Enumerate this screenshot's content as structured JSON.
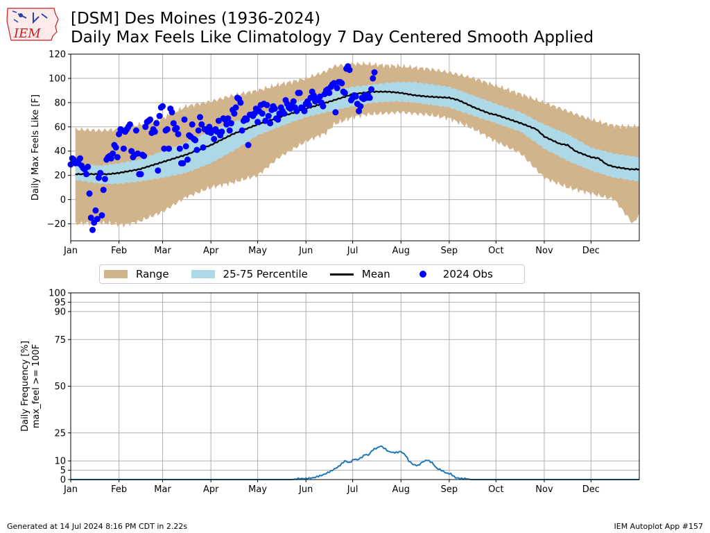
{
  "header": {
    "logo_text": "IEM",
    "title_line1": "[DSM] Des Moines (1936-2024)",
    "title_line2": "Daily Max Feels Like Climatology  7 Day Centered Smooth Applied"
  },
  "legend": {
    "range_label": "Range",
    "percentile_label": "25-75 Percentile",
    "mean_label": "Mean",
    "obs_label": "2024 Obs"
  },
  "footer": {
    "generated": "Generated at 14 Jul 2024 8:16 PM CDT in 2.22s",
    "app": "IEM Autoplot App #157"
  },
  "colors": {
    "range": "#d2b48c",
    "percentile": "#add8e6",
    "mean": "#000000",
    "obs": "#0000ff",
    "frequency": "#1f77b4",
    "grid": "#b0b0b0"
  },
  "chart_data": [
    {
      "type": "area",
      "ylabel": "Daily Max Feels Like [F]",
      "ylim": [
        -34,
        120
      ],
      "yticks": [
        -20,
        0,
        20,
        40,
        60,
        80,
        100,
        120
      ],
      "ytick_labels": [
        "−20",
        "0",
        "20",
        "40",
        "60",
        "80",
        "100",
        "120"
      ],
      "xlim": [
        1,
        366
      ],
      "xticks": [
        1,
        32,
        60,
        91,
        121,
        152,
        182,
        213,
        244,
        274,
        305,
        335
      ],
      "xtick_labels": [
        "Jan",
        "Feb",
        "Mar",
        "Apr",
        "May",
        "Jun",
        "Jul",
        "Aug",
        "Sep",
        "Oct",
        "Nov",
        "Dec"
      ],
      "grid": true,
      "legend_position": "below",
      "series": [
        {
          "name": "Range",
          "x": [
            4,
            20,
            35,
            45,
            60,
            75,
            91,
            105,
            121,
            135,
            152,
            165,
            170,
            182,
            190,
            200,
            213,
            230,
            244,
            260,
            274,
            290,
            305,
            320,
            335,
            350,
            362,
            366
          ],
          "low": [
            -20,
            -19,
            -21,
            -18,
            -10,
            2,
            10,
            14,
            20,
            35,
            48,
            55,
            62,
            68,
            70,
            71,
            72,
            70,
            67,
            58,
            48,
            38,
            18,
            10,
            5,
            0,
            -20,
            -12
          ],
          "high": [
            58,
            57,
            58,
            62,
            67,
            77,
            81,
            86,
            90,
            95,
            100,
            106,
            110,
            112,
            112,
            111,
            110,
            108,
            105,
            100,
            94,
            87,
            80,
            73,
            66,
            61,
            60,
            61
          ]
        },
        {
          "name": "25-75 Percentile",
          "x": [
            4,
            10,
            20,
            32,
            45,
            60,
            75,
            91,
            105,
            121,
            135,
            152,
            165,
            182,
            195,
            210,
            222,
            244,
            255,
            274,
            290,
            305,
            320,
            335,
            350,
            366
          ],
          "low": [
            16,
            15,
            13,
            13,
            15,
            18,
            22,
            30,
            40,
            53,
            60,
            68,
            72,
            77,
            80,
            81,
            80,
            76,
            71,
            63,
            56,
            42,
            32,
            24,
            18,
            15
          ],
          "high": [
            30,
            29,
            28,
            30,
            33,
            40,
            47,
            57,
            64,
            70,
            76,
            83,
            89,
            93,
            95,
            97,
            97,
            93,
            88,
            79,
            72,
            62,
            54,
            43,
            38,
            35
          ]
        },
        {
          "name": "Mean",
          "x": [
            4,
            15,
            25,
            32,
            45,
            60,
            75,
            91,
            105,
            121,
            135,
            152,
            165,
            175,
            182,
            195,
            205,
            213,
            222,
            230,
            244,
            250,
            260,
            270,
            274,
            290,
            300,
            305,
            315,
            320,
            325,
            335,
            340,
            345,
            350,
            360,
            366
          ],
          "values": [
            21,
            21,
            21,
            22,
            25,
            31,
            37,
            45,
            54,
            62,
            68,
            75,
            80,
            84,
            87,
            89,
            89,
            88,
            86,
            85,
            84,
            82,
            76,
            71,
            70,
            63,
            58,
            52,
            46,
            45,
            40,
            35,
            34,
            29,
            27,
            25,
            25
          ]
        },
        {
          "name": "2024 Obs",
          "x": [
            1,
            2,
            3,
            4,
            5,
            6,
            7,
            8,
            9,
            10,
            11,
            12,
            13,
            14,
            15,
            16,
            17,
            18,
            19,
            20,
            21,
            22,
            23,
            24,
            25,
            26,
            27,
            28,
            29,
            30,
            31,
            32,
            33,
            34,
            35,
            36,
            37,
            38,
            39,
            40,
            41,
            42,
            43,
            44,
            45,
            46,
            47,
            48,
            49,
            50,
            51,
            52,
            53,
            54,
            55,
            56,
            57,
            58,
            59,
            60,
            61,
            62,
            63,
            64,
            65,
            66,
            67,
            68,
            69,
            70,
            71,
            72,
            73,
            74,
            75,
            76,
            77,
            78,
            79,
            80,
            81,
            82,
            83,
            84,
            85,
            86,
            87,
            88,
            89,
            90,
            91,
            92,
            93,
            94,
            95,
            96,
            97,
            98,
            99,
            100,
            101,
            102,
            103,
            104,
            105,
            106,
            107,
            108,
            109,
            110,
            111,
            112,
            113,
            114,
            115,
            116,
            117,
            118,
            119,
            120,
            121,
            122,
            123,
            124,
            125,
            126,
            127,
            128,
            129,
            130,
            131,
            132,
            133,
            134,
            135,
            136,
            137,
            138,
            139,
            140,
            141,
            142,
            143,
            144,
            145,
            146,
            147,
            148,
            149,
            150,
            151,
            152,
            153,
            154,
            155,
            156,
            157,
            158,
            159,
            160,
            161,
            162,
            163,
            164,
            165,
            166,
            167,
            168,
            169,
            170,
            171,
            172,
            173,
            174,
            175,
            176,
            177,
            178,
            179,
            180,
            181,
            182,
            183,
            184,
            185,
            186,
            187,
            188,
            189,
            190,
            191,
            192,
            193,
            194,
            195,
            196
          ],
          "values": [
            29,
            34,
            33,
            30,
            31,
            30,
            34,
            28,
            26,
            25,
            21,
            27,
            5,
            -15,
            -25,
            -19,
            -9,
            -16,
            18,
            22,
            -13,
            8,
            17,
            33,
            35,
            36,
            34,
            38,
            45,
            43,
            35,
            54,
            58,
            57,
            42,
            56,
            58,
            60,
            62,
            40,
            35,
            37,
            57,
            38,
            21,
            21,
            37,
            36,
            60,
            64,
            65,
            66,
            55,
            58,
            56,
            63,
            24,
            69,
            76,
            77,
            42,
            57,
            58,
            42,
            75,
            72,
            63,
            58,
            59,
            54,
            42,
            30,
            30,
            66,
            44,
            33,
            53,
            52,
            62,
            50,
            49,
            41,
            57,
            68,
            62,
            43,
            58,
            58,
            56,
            60,
            55,
            57,
            50,
            58,
            56,
            65,
            53,
            56,
            67,
            66,
            62,
            67,
            57,
            63,
            74,
            71,
            76,
            84,
            83,
            80,
            57,
            65,
            67,
            66,
            45,
            70,
            70,
            69,
            71,
            75,
            64,
            73,
            78,
            71,
            79,
            65,
            78,
            69,
            63,
            74,
            77,
            75,
            67,
            66,
            71,
            76,
            73,
            71,
            82,
            79,
            76,
            75,
            78,
            81,
            76,
            73,
            88,
            88,
            76,
            75,
            73,
            79,
            81,
            78,
            84,
            89,
            86,
            81,
            83,
            82,
            85,
            80,
            77,
            87,
            90,
            91,
            88,
            93,
            95,
            96,
            72,
            92,
            97,
            97,
            96,
            89,
            88,
            108,
            110,
            107,
            82,
            84,
            86,
            85,
            79,
            73,
            77,
            84,
            83,
            86,
            84,
            86,
            84,
            91,
            100,
            105
          ]
        }
      ]
    },
    {
      "type": "line",
      "ylabel": "Daily Frequency [%]\nmax_feel >= 100F",
      "ylim": [
        0,
        100
      ],
      "yticks": [
        0,
        5,
        10,
        25,
        50,
        75,
        90,
        95,
        100
      ],
      "xlim": [
        1,
        366
      ],
      "xticks": [
        1,
        32,
        60,
        91,
        121,
        152,
        182,
        213,
        244,
        274,
        305,
        335
      ],
      "xtick_labels": [
        "Jan",
        "Feb",
        "Mar",
        "Apr",
        "May",
        "Jun",
        "Jul",
        "Aug",
        "Sep",
        "Oct",
        "Nov",
        "Dec"
      ],
      "grid": true,
      "series": [
        {
          "x": [
            1,
            143,
            147,
            152,
            157,
            163,
            168,
            173,
            177,
            180,
            183,
            185,
            188,
            190,
            192,
            195,
            198,
            200,
            202,
            205,
            208,
            210,
            213,
            216,
            218,
            221,
            224,
            227,
            230,
            233,
            236,
            239,
            242,
            245,
            248,
            252,
            255,
            258,
            261,
            366
          ],
          "values": [
            0,
            0,
            0.5,
            0.5,
            1,
            2.5,
            4.5,
            7,
            10,
            9,
            11,
            10.5,
            12,
            13.5,
            13,
            16,
            17,
            18,
            17,
            15,
            14.5,
            14.5,
            15,
            13,
            10,
            8,
            7.5,
            9.5,
            10.5,
            9,
            6,
            5,
            3.5,
            3,
            1,
            0.5,
            0.5,
            0,
            0,
            0
          ]
        }
      ]
    }
  ]
}
